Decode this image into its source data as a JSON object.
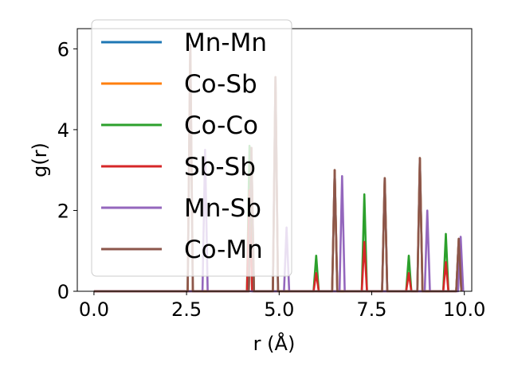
{
  "chart_data": {
    "type": "line",
    "xlabel": "r (Å)",
    "ylabel": "g(r)",
    "xlim": [
      -0.45,
      10.2
    ],
    "ylim": [
      0,
      6.5
    ],
    "xticks": [
      "0.0",
      "2.5",
      "5.0",
      "7.5",
      "10.0"
    ],
    "xtick_values": [
      0,
      2.5,
      5,
      7.5,
      10
    ],
    "yticks": [
      "0",
      "2",
      "4",
      "6"
    ],
    "ytick_values": [
      0,
      2,
      4,
      6
    ],
    "legend_position": "upper-left",
    "series": [
      {
        "name": "Mn-Mn",
        "color": "#1f77b4",
        "peaks": [
          [
            2.6,
            6.1
          ],
          [
            4.25,
            3.55
          ],
          [
            4.9,
            5.3
          ],
          [
            6.5,
            3.0
          ],
          [
            7.85,
            2.8
          ],
          [
            8.8,
            3.3
          ],
          [
            9.85,
            1.3
          ]
        ]
      },
      {
        "name": "Co-Sb",
        "color": "#ff7f0e",
        "peaks": [
          [
            2.6,
            6.1
          ],
          [
            4.25,
            3.55
          ],
          [
            4.9,
            5.3
          ],
          [
            6.5,
            3.0
          ],
          [
            7.85,
            2.8
          ],
          [
            8.8,
            3.3
          ],
          [
            9.85,
            1.3
          ]
        ]
      },
      {
        "name": "Co-Co",
        "color": "#2ca02c",
        "peaks": [
          [
            4.2,
            3.6
          ],
          [
            6.0,
            0.88
          ],
          [
            7.3,
            2.4
          ],
          [
            8.5,
            0.88
          ],
          [
            9.5,
            1.42
          ]
        ]
      },
      {
        "name": "Sb-Sb",
        "color": "#d62728",
        "peaks": [
          [
            4.2,
            2.5
          ],
          [
            6.0,
            0.45
          ],
          [
            7.3,
            1.22
          ],
          [
            8.5,
            0.45
          ],
          [
            9.5,
            0.72
          ]
        ]
      },
      {
        "name": "Mn-Sb",
        "color": "#9467bd",
        "peaks": [
          [
            3.0,
            3.5
          ],
          [
            5.2,
            1.58
          ],
          [
            6.7,
            2.85
          ],
          [
            9.0,
            2.0
          ],
          [
            9.9,
            1.35
          ]
        ]
      },
      {
        "name": "Co-Mn",
        "color": "#8c564b",
        "peaks": [
          [
            2.6,
            6.1
          ],
          [
            4.25,
            3.55
          ],
          [
            4.9,
            5.3
          ],
          [
            6.5,
            3.0
          ],
          [
            7.85,
            2.8
          ],
          [
            8.8,
            3.3
          ],
          [
            9.85,
            1.3
          ]
        ]
      }
    ]
  }
}
